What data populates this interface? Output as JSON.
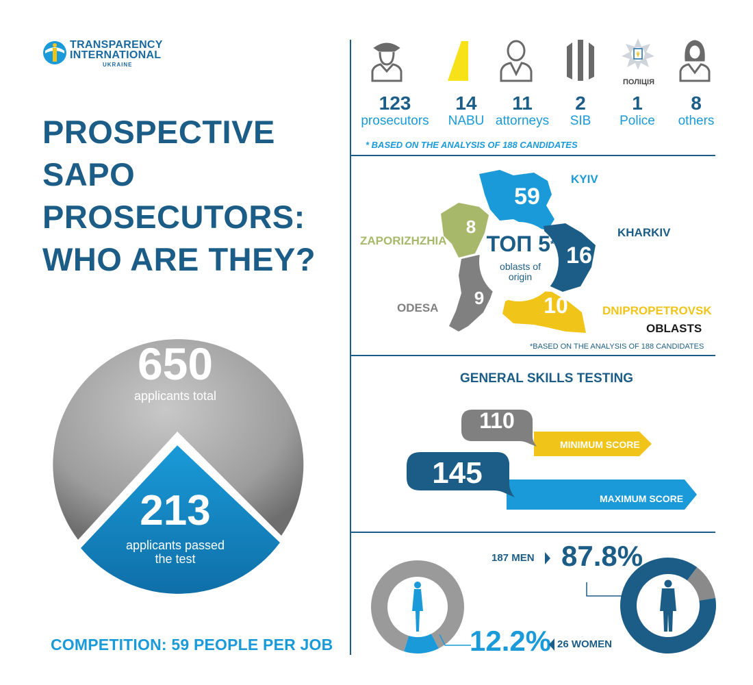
{
  "logo": {
    "line1": "TRANSPARENCY",
    "line2": "INTERNATIONAL",
    "line3": "UKRAINE"
  },
  "title": {
    "line1": "PROSPECTIVE SAPO",
    "line2": "PROSECUTORS:",
    "line3": "WHO ARE THEY?"
  },
  "applicants": {
    "total_value": "650",
    "total_label": "applicants total",
    "passed_value": "213",
    "passed_label_1": "applicants passed",
    "passed_label_2": "the test"
  },
  "competition": "COMPETITION: 59 PEOPLE PER JOB",
  "origins": {
    "items": [
      {
        "value": "123",
        "label": "prosecutors",
        "icon": "prosecutor-icon"
      },
      {
        "value": "14",
        "label": "NABU",
        "icon": "nabu-logo-icon"
      },
      {
        "value": "11",
        "label": "attorneys",
        "icon": "attorney-icon"
      },
      {
        "value": "2",
        "label": "SIB",
        "icon": "sib-logo-icon"
      },
      {
        "value": "1",
        "label": "Police",
        "icon": "police-badge-icon"
      },
      {
        "value": "8",
        "label": "others",
        "icon": "woman-icon"
      }
    ],
    "police_badge_text": "ПОЛІЦІЯ",
    "footnote": "* BASED ON THE ANALYSIS OF 188 CANDIDATES"
  },
  "map": {
    "center_title": "ТОП 5",
    "center_star": "*",
    "center_sub1": "oblasts of",
    "center_sub2": "origin",
    "regions": [
      {
        "name": "KYIV",
        "value": "59",
        "color": "#1a9ad8"
      },
      {
        "name": "KHARKIV",
        "value": "16",
        "color": "#1b5d86"
      },
      {
        "name": "ZAPORIZHZHIA",
        "value": "8",
        "color": "#a7b86a"
      },
      {
        "name": "ODESA",
        "value": "9",
        "color": "#808080"
      },
      {
        "name": "DNIPROPETROVSK",
        "value": "10",
        "color": "#f0c419"
      }
    ],
    "oblasts_label": "OBLASTS",
    "footnote": "*BASED ON THE ANALYSIS OF 188 CANDIDATES"
  },
  "skills": {
    "title": "GENERAL SKILLS TESTING",
    "min_value": "110",
    "min_label": "MINIMUM SCORE",
    "max_value": "145",
    "max_label": "MAXIMUM SCORE"
  },
  "gender": {
    "men_caption": "187 MEN",
    "men_percent": "87.8%",
    "men_fraction": 0.878,
    "women_caption": "26 WOMEN",
    "women_percent": "12.2%",
    "women_fraction": 0.122
  },
  "colors": {
    "dark_blue": "#1b5d86",
    "light_blue": "#1a9ad8",
    "yellow": "#f0c419",
    "gray": "#808080"
  }
}
